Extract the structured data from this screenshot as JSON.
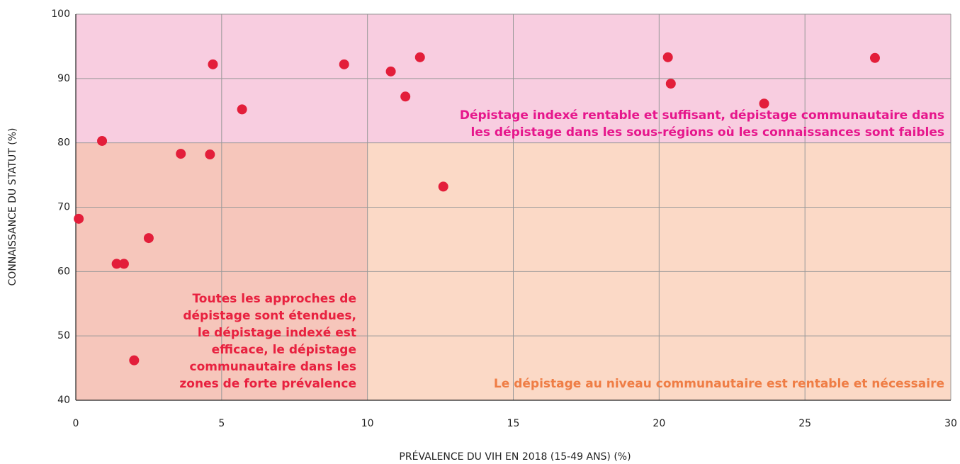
{
  "chart_data": {
    "type": "scatter",
    "xlabel": "PRÉVALENCE DU VIH EN 2018 (15-49 ANS) (%)",
    "ylabel": "CONNAISSANCE DU STATUT (%)",
    "x": [
      0.1,
      0.9,
      1.4,
      1.65,
      2.0,
      2.5,
      3.6,
      4.6,
      4.7,
      5.7,
      9.2,
      10.8,
      11.3,
      11.8,
      12.6,
      20.3,
      20.4,
      23.6,
      27.4
    ],
    "values": [
      68.2,
      80.3,
      61.2,
      61.2,
      46.2,
      65.2,
      78.3,
      78.2,
      92.2,
      85.2,
      92.2,
      91.1,
      87.2,
      93.3,
      73.2,
      93.3,
      89.2,
      86.1,
      93.2
    ],
    "color": "#e31e3a",
    "xlim": [
      0,
      30
    ],
    "xticks": [
      0,
      5,
      10,
      15,
      20,
      25,
      30
    ],
    "ylim": [
      40,
      100
    ],
    "yticks": [
      40,
      50,
      60,
      70,
      80,
      90,
      100
    ],
    "grid": true,
    "regions": [
      {
        "x": [
          0,
          30
        ],
        "y": [
          80,
          100
        ],
        "color": "#f8cde0"
      },
      {
        "x": [
          0,
          10
        ],
        "y": [
          40,
          80
        ],
        "color": "#f6c6bb"
      },
      {
        "x": [
          10,
          30
        ],
        "y": [
          40,
          80
        ],
        "color": "#fbd9c6"
      }
    ],
    "annotations": [
      {
        "lines": [
          "Dépistage indexé rentable et suffisant, dépistage communautaire dans",
          "les dépistage dans les sous-régions où les connaissances sont faibles"
        ],
        "color": "#e6168c"
      },
      {
        "lines": [
          "Toutes les approches de",
          "dépistage sont étendues,",
          "le dépistage indexé est",
          "efficace, le dépistage",
          "communautaire dans les",
          "zones de forte prévalence"
        ],
        "color": "#e8213f"
      },
      {
        "lines": [
          "Le dépistage au niveau communautaire est rentable et nécessaire"
        ],
        "color": "#ef7d45"
      }
    ]
  }
}
